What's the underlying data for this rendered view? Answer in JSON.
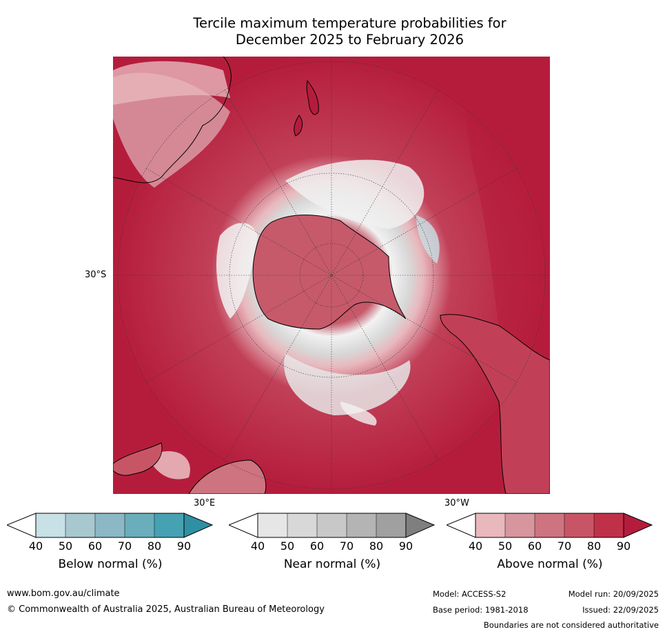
{
  "title": {
    "line1": "Tercile maximum temperature probabilities for",
    "line2": "December 2025 to February 2026"
  },
  "map": {
    "labels": {
      "lat": "30°S",
      "lon_e": "30°E",
      "lon_w": "30°W"
    }
  },
  "colorbars": [
    {
      "title": "Below normal (%)",
      "ticks": [
        "40",
        "50",
        "60",
        "70",
        "80",
        "90"
      ],
      "colors": [
        "#ffffff",
        "#c7e1e6",
        "#a8c8cf",
        "#8bb8c4",
        "#6aadbb",
        "#46a1b2",
        "#2f8fa3"
      ]
    },
    {
      "title": "Near normal (%)",
      "ticks": [
        "40",
        "50",
        "60",
        "70",
        "80",
        "90"
      ],
      "colors": [
        "#ffffff",
        "#e6e6e6",
        "#d8d8d8",
        "#c8c8c8",
        "#b4b4b4",
        "#a0a0a0",
        "#7f7f7f"
      ]
    },
    {
      "title": "Above normal (%)",
      "ticks": [
        "40",
        "50",
        "60",
        "70",
        "80",
        "90"
      ],
      "colors": [
        "#ffffff",
        "#e8b8bd",
        "#d7959e",
        "#cd7480",
        "#c85566",
        "#bf3149",
        "#b51c3c"
      ]
    }
  ],
  "footer": {
    "website": "www.bom.gov.au/climate",
    "copyright": "© Commonwealth of Australia 2025, Australian Bureau of Meteorology",
    "model": "Model: ACCESS-S2",
    "base_period": "Base period: 1981-2018",
    "model_run": "Model run: 20/09/2025",
    "issued": "Issued: 22/09/2025",
    "disclaimer": "Boundaries are not considered authoritative"
  }
}
